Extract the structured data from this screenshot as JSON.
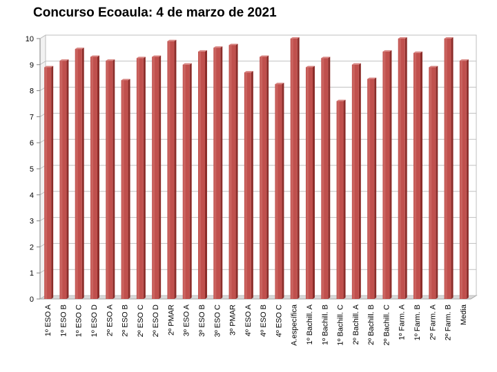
{
  "chart_data": {
    "type": "bar",
    "title": "Concurso Ecoaula: 4 de marzo de 2021",
    "xlabel": "",
    "ylabel": "",
    "ylim": [
      0,
      10
    ],
    "yticks": [
      0,
      1,
      2,
      3,
      4,
      5,
      6,
      7,
      8,
      9,
      10
    ],
    "grid": true,
    "legend": "none",
    "bar_color": "#c0504d",
    "categories": [
      "1º ESO A",
      "1º ESO B",
      "1º ESO C",
      "1º ESO D",
      "2º ESO A",
      "2º ESO B",
      "2º ESO C",
      "2º ESO D",
      "2º PMAR",
      "3º ESO A",
      "3º ESO B",
      "3º ESO C",
      "3º PMAR",
      "4º ESO A",
      "4º ESO B",
      "4º ESO C",
      "A.específica",
      "1º Bachill. A",
      "1º Bachill. B",
      "1º Bachill. C",
      "2º Bachill. A",
      "2º Bachill. B",
      "2º Bachill. C",
      "1º Farm. A",
      "1º Farm. B",
      "2º Farm. A",
      "2º Farm. B",
      "Media"
    ],
    "values": [
      8.9,
      9.15,
      9.6,
      9.3,
      9.15,
      8.4,
      9.25,
      9.3,
      9.9,
      9.0,
      9.5,
      9.65,
      9.75,
      8.7,
      9.3,
      8.25,
      10.0,
      8.9,
      9.25,
      7.6,
      9.0,
      8.45,
      9.5,
      10.0,
      9.45,
      8.9,
      10.0,
      9.15
    ]
  }
}
